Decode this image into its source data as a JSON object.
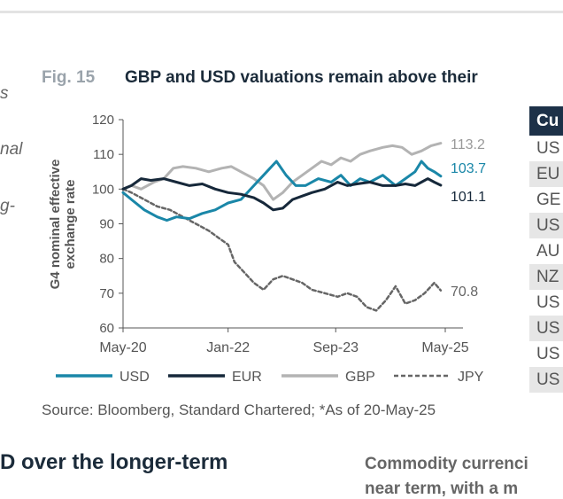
{
  "left_fragments": [
    "s",
    "nal",
    "g-"
  ],
  "figure": {
    "label": "Fig. 15",
    "title": "GBP and USD valuations remain above their"
  },
  "chart_data": {
    "type": "line",
    "ylabel": "G4 nominal effective exchange rate",
    "ylim": [
      60,
      120
    ],
    "yticks": [
      "60",
      "70",
      "80",
      "90",
      "100",
      "110",
      "120"
    ],
    "xticks": [
      "May-20",
      "Jan-22",
      "Sep-23",
      "May-25"
    ],
    "legend_position": "bottom",
    "series": [
      {
        "name": "USD",
        "color": "#1a87a8",
        "style": "solid",
        "end_label": "103.7",
        "values": [
          [
            2020.37,
            99
          ],
          [
            2020.5,
            97
          ],
          [
            2020.7,
            94
          ],
          [
            2020.9,
            92
          ],
          [
            2021.05,
            91
          ],
          [
            2021.2,
            92
          ],
          [
            2021.4,
            91.5
          ],
          [
            2021.6,
            93
          ],
          [
            2021.8,
            94
          ],
          [
            2022.0,
            96
          ],
          [
            2022.2,
            97
          ],
          [
            2022.4,
            101
          ],
          [
            2022.6,
            105
          ],
          [
            2022.75,
            108
          ],
          [
            2022.9,
            104
          ],
          [
            2023.05,
            101
          ],
          [
            2023.2,
            101
          ],
          [
            2023.4,
            103
          ],
          [
            2023.6,
            102
          ],
          [
            2023.75,
            104
          ],
          [
            2023.9,
            101
          ],
          [
            2024.05,
            103
          ],
          [
            2024.2,
            102
          ],
          [
            2024.4,
            104
          ],
          [
            2024.6,
            101
          ],
          [
            2024.75,
            103
          ],
          [
            2024.9,
            105
          ],
          [
            2025.0,
            108
          ],
          [
            2025.1,
            106
          ],
          [
            2025.2,
            105
          ],
          [
            2025.3,
            103.7
          ]
        ]
      },
      {
        "name": "EUR",
        "color": "#16283a",
        "style": "solid",
        "end_label": "101.1",
        "values": [
          [
            2020.37,
            100
          ],
          [
            2020.5,
            101
          ],
          [
            2020.65,
            103
          ],
          [
            2020.8,
            102.5
          ],
          [
            2021.0,
            103
          ],
          [
            2021.2,
            102
          ],
          [
            2021.4,
            101
          ],
          [
            2021.6,
            101.5
          ],
          [
            2021.8,
            100
          ],
          [
            2022.0,
            99
          ],
          [
            2022.2,
            98.5
          ],
          [
            2022.4,
            97.5
          ],
          [
            2022.55,
            96
          ],
          [
            2022.7,
            94
          ],
          [
            2022.85,
            94.5
          ],
          [
            2023.0,
            97
          ],
          [
            2023.15,
            98
          ],
          [
            2023.3,
            99
          ],
          [
            2023.5,
            100
          ],
          [
            2023.7,
            102
          ],
          [
            2023.85,
            101
          ],
          [
            2024.0,
            101.5
          ],
          [
            2024.2,
            102
          ],
          [
            2024.4,
            101
          ],
          [
            2024.6,
            101
          ],
          [
            2024.75,
            101.5
          ],
          [
            2024.9,
            101
          ],
          [
            2025.0,
            102
          ],
          [
            2025.1,
            103
          ],
          [
            2025.2,
            102
          ],
          [
            2025.3,
            101.1
          ]
        ]
      },
      {
        "name": "GBP",
        "color": "#b3b3b3",
        "style": "solid",
        "end_label": "113.2",
        "values": [
          [
            2020.37,
            100
          ],
          [
            2020.5,
            101
          ],
          [
            2020.65,
            100
          ],
          [
            2020.85,
            102
          ],
          [
            2021.0,
            103
          ],
          [
            2021.15,
            106
          ],
          [
            2021.3,
            106.5
          ],
          [
            2021.5,
            106
          ],
          [
            2021.7,
            105
          ],
          [
            2021.9,
            106
          ],
          [
            2022.05,
            106.5
          ],
          [
            2022.2,
            105
          ],
          [
            2022.4,
            103
          ],
          [
            2022.55,
            101
          ],
          [
            2022.7,
            97
          ],
          [
            2022.85,
            99
          ],
          [
            2023.0,
            102
          ],
          [
            2023.15,
            104
          ],
          [
            2023.3,
            106
          ],
          [
            2023.45,
            108
          ],
          [
            2023.6,
            107
          ],
          [
            2023.75,
            109
          ],
          [
            2023.9,
            108
          ],
          [
            2024.05,
            110
          ],
          [
            2024.2,
            111
          ],
          [
            2024.4,
            112
          ],
          [
            2024.55,
            112.5
          ],
          [
            2024.7,
            112
          ],
          [
            2024.85,
            110
          ],
          [
            2025.0,
            111
          ],
          [
            2025.15,
            112.5
          ],
          [
            2025.3,
            113.2
          ]
        ]
      },
      {
        "name": "JPY",
        "color": "#666666",
        "style": "dashed",
        "end_label": "70.8",
        "values": [
          [
            2020.37,
            100
          ],
          [
            2020.5,
            99
          ],
          [
            2020.7,
            97
          ],
          [
            2020.9,
            95
          ],
          [
            2021.1,
            94
          ],
          [
            2021.3,
            92
          ],
          [
            2021.5,
            90
          ],
          [
            2021.7,
            88
          ],
          [
            2021.85,
            86
          ],
          [
            2022.0,
            84
          ],
          [
            2022.1,
            79
          ],
          [
            2022.25,
            76
          ],
          [
            2022.4,
            73
          ],
          [
            2022.55,
            71
          ],
          [
            2022.7,
            74
          ],
          [
            2022.85,
            75
          ],
          [
            2023.0,
            74
          ],
          [
            2023.15,
            73
          ],
          [
            2023.3,
            71
          ],
          [
            2023.5,
            70
          ],
          [
            2023.7,
            69
          ],
          [
            2023.85,
            70
          ],
          [
            2024.0,
            69
          ],
          [
            2024.15,
            66
          ],
          [
            2024.3,
            65
          ],
          [
            2024.45,
            68
          ],
          [
            2024.6,
            72
          ],
          [
            2024.75,
            67
          ],
          [
            2024.9,
            68
          ],
          [
            2025.05,
            70
          ],
          [
            2025.2,
            73
          ],
          [
            2025.3,
            70.8
          ]
        ]
      }
    ]
  },
  "table": {
    "header": "Cu",
    "rows": [
      "US",
      "EU",
      "GE",
      "US",
      "AU",
      "NZ",
      "US",
      "US",
      "US",
      "US"
    ]
  },
  "source": "Source: Bloomberg, Standard Chartered; *As of 20-May-25",
  "section": {
    "left_title": "D over the longer-term",
    "right_title": "Commodity currenci",
    "right_fragment": "near term, with a m"
  }
}
